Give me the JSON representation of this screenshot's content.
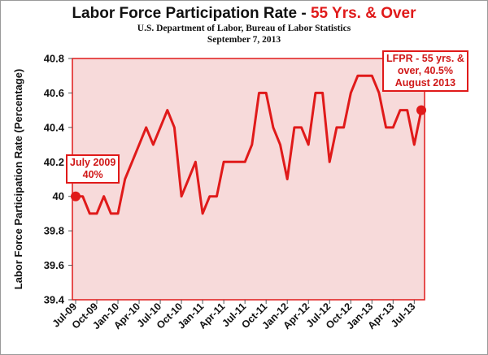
{
  "chart_data": {
    "type": "line",
    "title": "Labor Force Participation Rate - ",
    "title_highlight": "55 Yrs. & Over",
    "subtitle_lines": [
      "U.S. Department of Labor, Bureau of Labor Statistics",
      "September 7, 2013"
    ],
    "ylabel": "Labor Force Participation Rate (Percentage)",
    "xlabel": "",
    "ylim": [
      39.4,
      40.8
    ],
    "yticks": [
      39.4,
      39.6,
      39.8,
      40,
      40.2,
      40.4,
      40.6,
      40.8
    ],
    "ytick_labels": [
      "39.4",
      "39.6",
      "39.8",
      "40",
      "40.2",
      "40.4",
      "40.6",
      "40.8"
    ],
    "xtick_labels": [
      "Jul-09",
      "Oct-09",
      "Jan-10",
      "Apr-10",
      "Jul-10",
      "Oct-10",
      "Jan-11",
      "Apr-11",
      "Jul-11",
      "Oct-11",
      "Jan-12",
      "Apr-12",
      "Jul-12",
      "Oct-12",
      "Jan-13",
      "Apr-13",
      "Jul-13"
    ],
    "grid": false,
    "legend": "none",
    "series": [
      {
        "values": [
          40.0,
          40.0,
          39.9,
          39.9,
          40.0,
          39.9,
          39.9,
          40.1,
          40.2,
          40.3,
          40.4,
          40.3,
          40.4,
          40.5,
          40.4,
          40.0,
          40.1,
          40.2,
          39.9,
          40.0,
          40.0,
          40.2,
          40.2,
          40.2,
          40.2,
          40.3,
          40.6,
          40.6,
          40.4,
          40.3,
          40.1,
          40.4,
          40.4,
          40.3,
          40.6,
          40.6,
          40.2,
          40.4,
          40.4,
          40.6,
          40.7,
          40.7,
          40.7,
          40.6,
          40.4,
          40.4,
          40.5,
          40.5,
          40.3,
          40.5
        ]
      }
    ],
    "annotations": [
      {
        "lines": [
          "July 2009",
          "40%"
        ],
        "value": 40.0
      },
      {
        "lines": [
          "LFPR - 55 yrs. &",
          "over, 40.5%",
          "August 2013"
        ],
        "value": 40.5
      }
    ],
    "colors": {
      "line": "#e01a1a",
      "plot_bg": "#f7dada",
      "highlight": "#e01a1a"
    }
  }
}
